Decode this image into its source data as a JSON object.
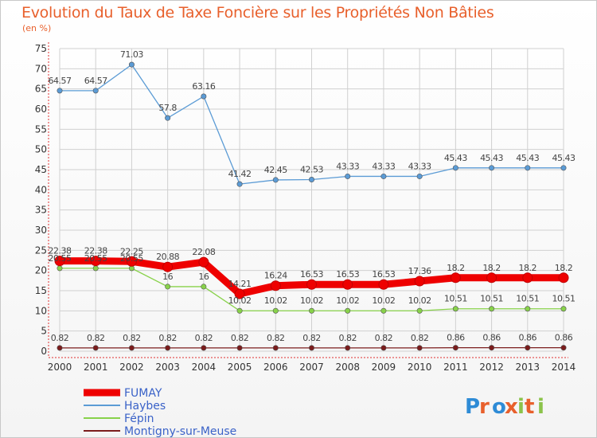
{
  "title": "Evolution du Taux de Taxe Foncière sur les Propriétés Non Bâties",
  "subtitle": "(en %)",
  "logo_text": "Proxiti",
  "colors": {
    "title": "#e8602c",
    "axis": "#e03030",
    "grid": "#d0d0d0",
    "legend_text": "#3a62c8"
  },
  "chart_data": {
    "type": "line",
    "title": "Evolution du Taux de Taxe Foncière sur les Propriétés Non Bâties",
    "ylabel": "(en %)",
    "xlabel": "",
    "ylim": [
      0,
      75
    ],
    "ytick_step": 5,
    "grid": true,
    "legend_position": "bottom-left",
    "categories": [
      "2000",
      "2001",
      "2002",
      "2003",
      "2004",
      "2005",
      "2006",
      "2007",
      "2008",
      "2009",
      "2010",
      "2011",
      "2012",
      "2013",
      "2014"
    ],
    "series": [
      {
        "name": "FUMAY",
        "color": "#ee0000",
        "style": "thick",
        "values": [
          22.38,
          22.38,
          22.25,
          20.88,
          22.08,
          14.21,
          16.24,
          16.53,
          16.53,
          16.53,
          17.36,
          18.2,
          18.2,
          18.2,
          18.2
        ]
      },
      {
        "name": "Haybes",
        "color": "#5b9bd5",
        "style": "thin",
        "values": [
          64.57,
          64.57,
          71.03,
          57.8,
          63.16,
          41.42,
          42.45,
          42.53,
          43.33,
          43.33,
          43.33,
          45.43,
          45.43,
          45.43,
          45.43
        ]
      },
      {
        "name": "Fépin",
        "color": "#88d24a",
        "style": "thin",
        "values": [
          20.55,
          20.55,
          20.55,
          16,
          16,
          10.02,
          10.02,
          10.02,
          10.02,
          10.02,
          10.02,
          10.51,
          10.51,
          10.51,
          10.51
        ]
      },
      {
        "name": "Montigny-sur-Meuse",
        "color": "#7b1c1c",
        "style": "thin",
        "values": [
          0.82,
          0.82,
          0.82,
          0.82,
          0.82,
          0.82,
          0.82,
          0.82,
          0.82,
          0.82,
          0.82,
          0.86,
          0.86,
          0.86,
          0.86
        ]
      }
    ]
  }
}
